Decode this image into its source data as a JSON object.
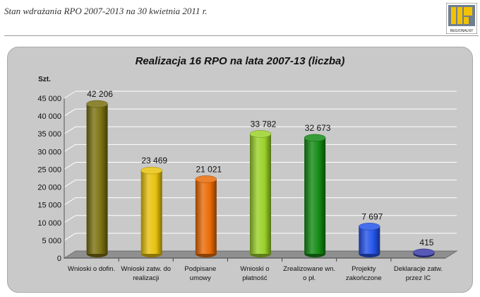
{
  "header": {
    "doc_title": "Stan wdrażania RPO 2007-2013 na 30 kwietnia 2011 r.",
    "logo_text": "REGIONALNY"
  },
  "chart_data": {
    "type": "bar",
    "title": "Realizacja 16 RPO na lata 2007-13 (liczba)",
    "ylabel": "Szt.",
    "xlabel": "",
    "ylim": [
      0,
      45000
    ],
    "yticks": [
      0,
      5000,
      10000,
      15000,
      20000,
      25000,
      30000,
      35000,
      40000,
      45000
    ],
    "ytick_labels": [
      "0",
      "5 000",
      "10 000",
      "15 000",
      "20 000",
      "25 000",
      "30 000",
      "35 000",
      "40 000",
      "45 000"
    ],
    "categories": [
      [
        "Wnioski o dofin."
      ],
      [
        "Wnioski zatw. do",
        "realizacji"
      ],
      [
        "Podpisane",
        "umowy"
      ],
      [
        "Wnioski o",
        "płatność"
      ],
      [
        "Zrealizowane wn.",
        "o pł."
      ],
      [
        "Projekty",
        "zakończone"
      ],
      [
        "Deklaracje zatw.",
        "przez IC"
      ]
    ],
    "values": [
      42206,
      23469,
      21021,
      33782,
      32673,
      7697,
      415
    ],
    "value_labels": [
      "42 206",
      "23 469",
      "21 021",
      "33 782",
      "32 673",
      "7 697",
      "415"
    ],
    "colors": [
      "#7a7010",
      "#e8c20c",
      "#ea6a06",
      "#9bd12a",
      "#138a14",
      "#2454ea",
      "#3a3aa8"
    ],
    "grid": true,
    "legend": "none"
  }
}
